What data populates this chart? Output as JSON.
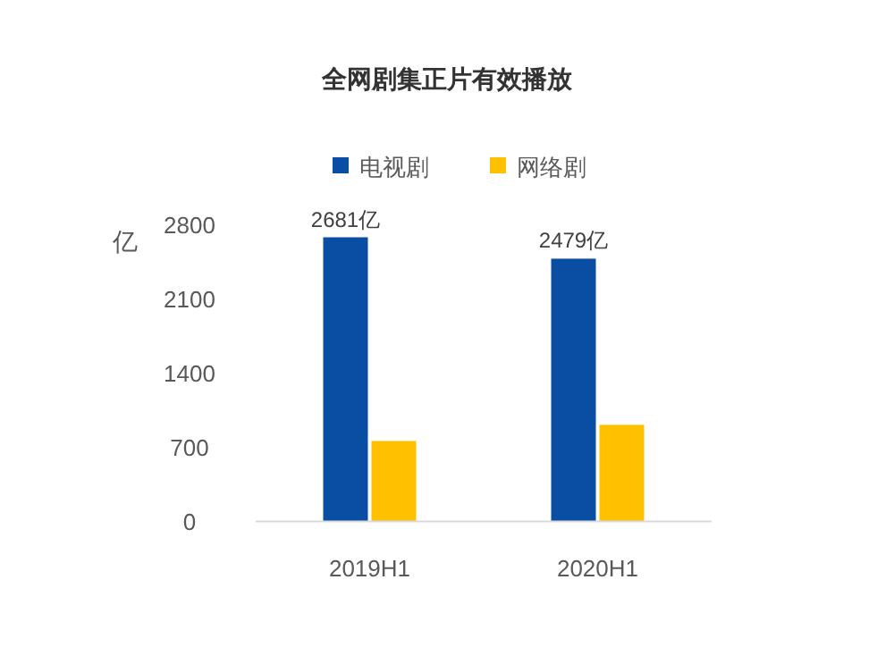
{
  "chart_data": {
    "type": "bar",
    "title": "全网剧集正片有效播放",
    "ylabel": "亿",
    "categories": [
      "2019H1",
      "2020H1"
    ],
    "series": [
      {
        "name": "电视剧",
        "color": "#0a4ea4",
        "values": [
          2681,
          2479
        ],
        "value_labels": [
          "2681亿",
          "2479亿"
        ]
      },
      {
        "name": "网络剧",
        "color": "#ffc000",
        "values": [
          759,
          911
        ]
      }
    ],
    "ylim": [
      0,
      2800
    ],
    "yticks": [
      0,
      700,
      1400,
      2100,
      2800
    ],
    "grid": false,
    "legend": "top"
  }
}
